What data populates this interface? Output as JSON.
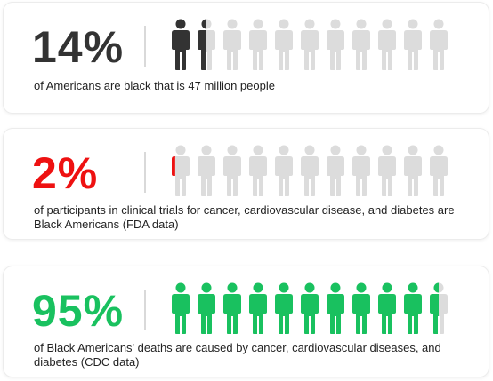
{
  "colors": {
    "inactive_figure": "#dcdcdc",
    "divider": "#d9d9d9",
    "text": "#222222"
  },
  "stats": [
    {
      "percent_label": "14%",
      "percent_value": 14,
      "percent_color": "#333333",
      "figure_color": "#333333",
      "highlighted_figures": 1.5,
      "total_figures": 11,
      "description": "of Americans are black that is 47 million people"
    },
    {
      "percent_label": "2%",
      "percent_value": 2,
      "percent_color": "#ee1111",
      "figure_color": "#ee1111",
      "highlighted_figures": 0.22,
      "total_figures": 11,
      "description": "of participants in clinical trials for cancer, cardiovascular disease, and diabetes are Black Americans (FDA data)"
    },
    {
      "percent_label": "95%",
      "percent_value": 95,
      "percent_color": "#19c15f",
      "figure_color": "#19c15f",
      "highlighted_figures": 10.5,
      "total_figures": 11,
      "description": "of Black Americans' deaths are caused by cancer, cardiovascular diseases, and diabetes (CDC data)"
    }
  ]
}
